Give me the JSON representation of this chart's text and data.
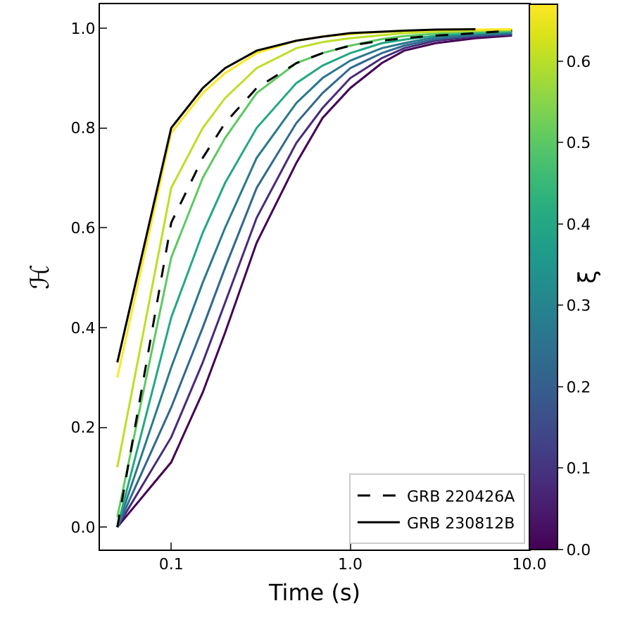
{
  "chart_data": {
    "type": "line",
    "xlabel": "Time (s)",
    "ylabel": "ℋ",
    "clabel": "ξ",
    "log": "x",
    "x": [
      0.05,
      0.1,
      0.15,
      0.2,
      0.3,
      0.5,
      0.7,
      1,
      1.5,
      2,
      3,
      5,
      8
    ],
    "xlim": [
      0.04,
      10
    ],
    "xticks": [
      {
        "value": 0.1,
        "label": "0.1"
      },
      {
        "value": 1,
        "label": "1.0"
      },
      {
        "value": 10,
        "label": "10.0"
      }
    ],
    "ylim": [
      -0.045,
      1.048
    ],
    "yticks": [
      {
        "value": 0,
        "label": "0.0"
      },
      {
        "value": 0.2,
        "label": "0.2"
      },
      {
        "value": 0.4,
        "label": "0.4"
      },
      {
        "value": 0.6,
        "label": "0.6"
      },
      {
        "value": 0.8,
        "label": "0.8"
      },
      {
        "value": 1,
        "label": "1.0"
      }
    ],
    "clim": [
      0,
      0.67
    ],
    "cticks": [
      {
        "value": 0,
        "label": "0.0"
      },
      {
        "value": 0.1,
        "label": "0.1"
      },
      {
        "value": 0.2,
        "label": "0.2"
      },
      {
        "value": 0.3,
        "label": "0.3"
      },
      {
        "value": 0.4,
        "label": "0.4"
      },
      {
        "value": 0.5,
        "label": "0.5"
      },
      {
        "value": 0.6,
        "label": "0.6"
      }
    ],
    "grid": false,
    "legend": "bottom right",
    "marker": "none",
    "series": [
      {
        "color": "#440154",
        "values": [
          0,
          0.13,
          0.27,
          0.39,
          0.57,
          0.73,
          0.82,
          0.88,
          0.93,
          0.955,
          0.97,
          0.98,
          0.985
        ]
      },
      {
        "color": "#472c7a",
        "values": [
          0,
          0.18,
          0.33,
          0.45,
          0.62,
          0.77,
          0.84,
          0.9,
          0.94,
          0.96,
          0.975,
          0.983,
          0.987
        ]
      },
      {
        "color": "#31688e",
        "values": [
          0,
          0.24,
          0.4,
          0.52,
          0.68,
          0.81,
          0.87,
          0.92,
          0.95,
          0.965,
          0.978,
          0.986,
          0.989
        ]
      },
      {
        "color": "#2a788e",
        "values": [
          0,
          0.32,
          0.49,
          0.6,
          0.74,
          0.85,
          0.9,
          0.935,
          0.96,
          0.97,
          0.982,
          0.988,
          0.991
        ]
      },
      {
        "color": "#22a884",
        "values": [
          0,
          0.42,
          0.59,
          0.69,
          0.8,
          0.89,
          0.925,
          0.95,
          0.97,
          0.977,
          0.985,
          0.99,
          0.993
        ]
      },
      {
        "color": "#5ec962",
        "values": [
          0.02,
          0.54,
          0.7,
          0.78,
          0.87,
          0.93,
          0.95,
          0.965,
          0.978,
          0.984,
          0.989,
          0.993,
          0.995
        ]
      },
      {
        "color": "#bddf26",
        "values": [
          0.12,
          0.68,
          0.8,
          0.86,
          0.92,
          0.96,
          0.972,
          0.98,
          0.986,
          0.99,
          0.993,
          0.995,
          0.997
        ]
      },
      {
        "color": "#fde725",
        "values": [
          0.3,
          0.79,
          0.87,
          0.91,
          0.95,
          0.975,
          0.983,
          0.988,
          0.992,
          0.994,
          0.996,
          0.997,
          0.998
        ]
      },
      {
        "name": "GRB 220426A",
        "color": "#000000",
        "line_style": "dashed",
        "values": [
          0,
          0.61,
          0.74,
          0.81,
          0.88,
          0.93,
          0.95,
          0.965,
          0.975,
          0.98,
          0.985,
          0.99,
          0.995
        ]
      },
      {
        "name": "GRB 230812B",
        "color": "#000000",
        "line_style": "solid",
        "x": [
          0.05,
          0.1,
          0.15,
          0.2,
          0.3,
          0.5,
          0.7,
          1,
          1.5,
          2,
          3,
          5
        ],
        "values": [
          0.33,
          0.8,
          0.88,
          0.92,
          0.955,
          0.975,
          0.983,
          0.99,
          0.993,
          0.995,
          0.997,
          0.998
        ]
      }
    ]
  }
}
